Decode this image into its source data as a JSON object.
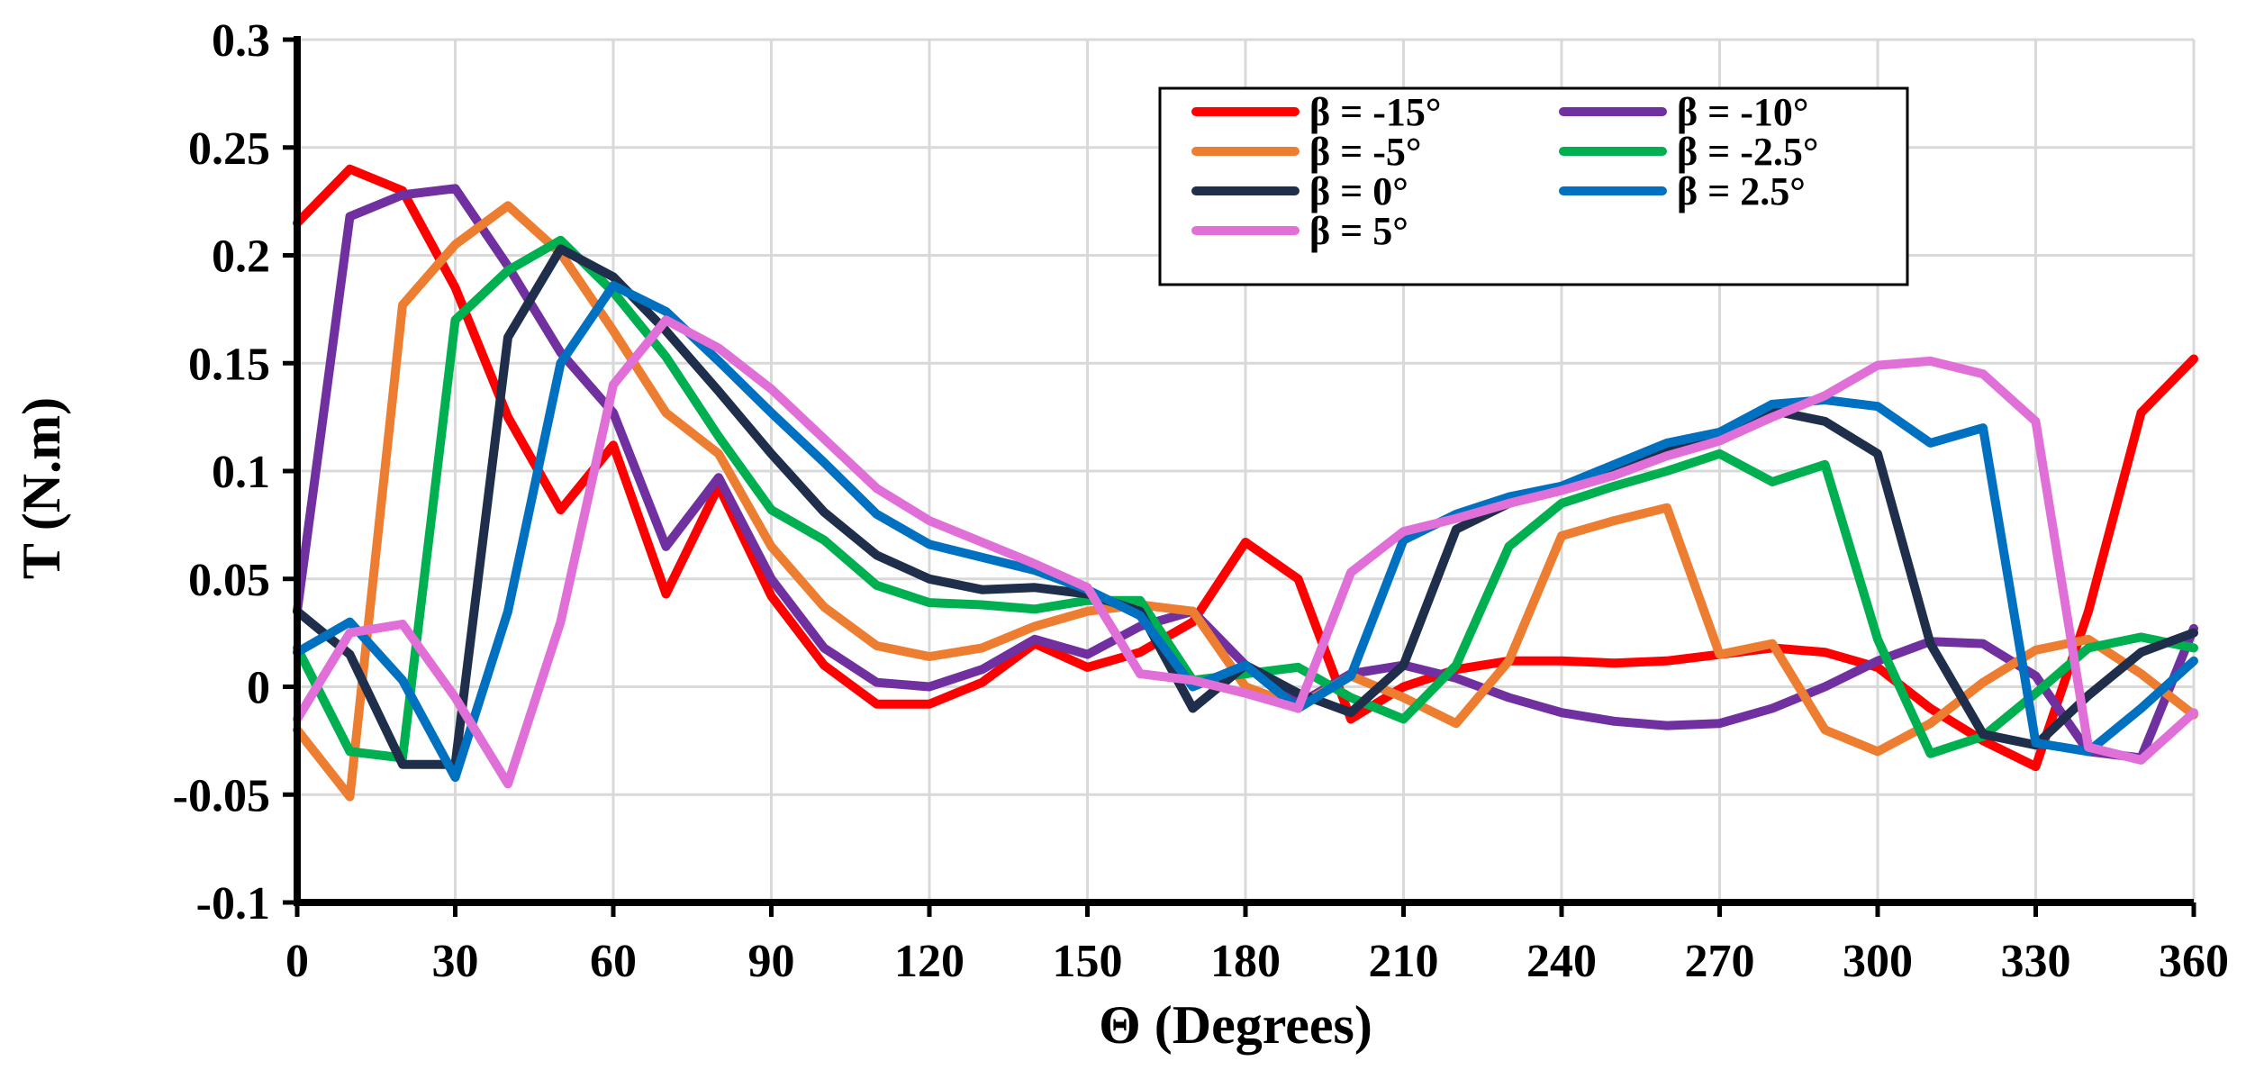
{
  "chart_data": {
    "type": "line",
    "title": "",
    "xlabel": "Θ (Degrees)",
    "ylabel": "T (N.m)",
    "xlim": [
      0,
      360
    ],
    "ylim": [
      -0.1,
      0.3
    ],
    "xticks": [
      0,
      30,
      60,
      90,
      120,
      150,
      180,
      210,
      240,
      270,
      300,
      330,
      360
    ],
    "xtick_labels": [
      "0",
      "30",
      "60",
      "90",
      "120",
      "150",
      "180",
      "210",
      "240",
      "270",
      "300",
      "330",
      "360"
    ],
    "yticks": [
      -0.1,
      -0.05,
      0,
      0.05,
      0.1,
      0.15,
      0.2,
      0.25,
      0.3
    ],
    "ytick_labels": [
      "-0.1",
      "-0.05",
      "0",
      "0.05",
      "0.1",
      "0.15",
      "0.2",
      "0.25",
      "0.3"
    ],
    "grid": true,
    "legend_position": "top-right",
    "x": [
      0,
      10,
      20,
      30,
      40,
      50,
      60,
      70,
      80,
      90,
      100,
      110,
      120,
      130,
      140,
      150,
      160,
      170,
      180,
      190,
      200,
      210,
      220,
      230,
      240,
      250,
      260,
      270,
      280,
      290,
      300,
      310,
      320,
      330,
      340,
      350,
      360
    ],
    "series": [
      {
        "name": "β = -15°",
        "color": "#ff0000",
        "values": [
          0.215,
          0.24,
          0.23,
          0.185,
          0.125,
          0.082,
          0.112,
          0.043,
          0.093,
          0.042,
          0.01,
          -0.008,
          -0.008,
          0.002,
          0.02,
          0.009,
          0.016,
          0.03,
          0.067,
          0.05,
          -0.015,
          0.0,
          0.008,
          0.012,
          0.012,
          0.011,
          0.012,
          0.015,
          0.018,
          0.016,
          0.009,
          -0.01,
          -0.025,
          -0.037,
          0.035,
          0.127,
          0.152
        ]
      },
      {
        "name": "β = -10°",
        "color": "#7030a0",
        "values": [
          0.035,
          0.218,
          0.228,
          0.231,
          0.195,
          0.155,
          0.127,
          0.065,
          0.097,
          0.05,
          0.018,
          0.002,
          0.0,
          0.008,
          0.022,
          0.015,
          0.028,
          0.035,
          0.01,
          -0.008,
          0.006,
          0.01,
          0.004,
          -0.005,
          -0.012,
          -0.016,
          -0.018,
          -0.017,
          -0.01,
          0.0,
          0.012,
          0.021,
          0.02,
          0.005,
          -0.03,
          -0.033,
          0.027
        ]
      },
      {
        "name": "β = -5°",
        "color": "#ed7d31",
        "values": [
          -0.02,
          -0.051,
          0.177,
          0.205,
          0.223,
          0.201,
          0.165,
          0.127,
          0.108,
          0.065,
          0.037,
          0.019,
          0.014,
          0.018,
          0.028,
          0.035,
          0.038,
          0.035,
          0.0,
          -0.009,
          0.005,
          -0.005,
          -0.017,
          0.012,
          0.07,
          0.077,
          0.083,
          0.015,
          0.02,
          -0.02,
          -0.03,
          -0.017,
          0.002,
          0.017,
          0.022,
          0.006,
          -0.013
        ]
      },
      {
        "name": "β = -2.5°",
        "color": "#00b050",
        "values": [
          0.018,
          -0.03,
          -0.033,
          0.17,
          0.193,
          0.207,
          0.183,
          0.153,
          0.116,
          0.082,
          0.068,
          0.047,
          0.039,
          0.038,
          0.036,
          0.04,
          0.04,
          0.003,
          0.006,
          0.009,
          -0.005,
          -0.015,
          0.01,
          0.065,
          0.085,
          0.093,
          0.1,
          0.108,
          0.095,
          0.103,
          0.022,
          -0.031,
          -0.023,
          -0.003,
          0.018,
          0.023,
          0.018
        ]
      },
      {
        "name": "β = 0°",
        "color": "#1f2e4a",
        "values": [
          0.035,
          0.015,
          -0.036,
          -0.036,
          0.162,
          0.203,
          0.19,
          0.165,
          0.137,
          0.108,
          0.081,
          0.061,
          0.05,
          0.045,
          0.046,
          0.043,
          0.035,
          -0.01,
          0.01,
          -0.003,
          -0.012,
          0.01,
          0.073,
          0.085,
          0.092,
          0.102,
          0.11,
          0.117,
          0.128,
          0.123,
          0.108,
          0.02,
          -0.022,
          -0.027,
          -0.004,
          0.016,
          0.025
        ]
      },
      {
        "name": "β = 2.5°",
        "color": "#0070c0",
        "values": [
          0.016,
          0.03,
          0.003,
          -0.042,
          0.035,
          0.15,
          0.186,
          0.174,
          0.151,
          0.127,
          0.104,
          0.08,
          0.066,
          0.06,
          0.054,
          0.045,
          0.033,
          0.0,
          0.01,
          -0.01,
          0.005,
          0.068,
          0.08,
          0.088,
          0.093,
          0.103,
          0.113,
          0.118,
          0.131,
          0.133,
          0.13,
          0.113,
          0.12,
          -0.026,
          -0.03,
          -0.01,
          0.012
        ]
      },
      {
        "name": "β = 5°",
        "color": "#e070d8",
        "values": [
          -0.015,
          0.025,
          0.029,
          -0.005,
          -0.045,
          0.03,
          0.14,
          0.17,
          0.157,
          0.138,
          0.115,
          0.092,
          0.077,
          0.067,
          0.057,
          0.046,
          0.006,
          0.003,
          -0.003,
          -0.01,
          0.053,
          0.072,
          0.078,
          0.085,
          0.091,
          0.098,
          0.107,
          0.114,
          0.125,
          0.135,
          0.149,
          0.151,
          0.145,
          0.123,
          -0.028,
          -0.034,
          -0.012
        ]
      }
    ]
  }
}
